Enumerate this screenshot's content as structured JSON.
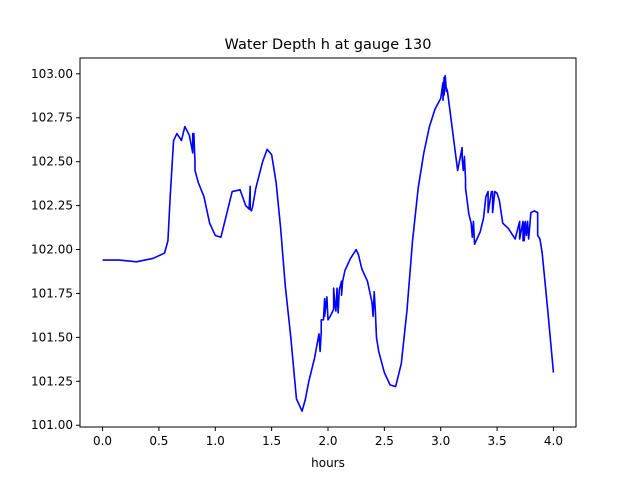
{
  "chart_data": {
    "type": "line",
    "title": "Water Depth h at gauge 130",
    "xlabel": "hours",
    "ylabel": "",
    "xlim": [
      -0.2,
      4.2
    ],
    "ylim": [
      100.99,
      103.09
    ],
    "x_ticks": [
      0.0,
      0.5,
      1.0,
      1.5,
      2.0,
      2.5,
      3.0,
      3.5,
      4.0
    ],
    "x_tick_labels": [
      "0.0",
      "0.5",
      "1.0",
      "1.5",
      "2.0",
      "2.5",
      "3.0",
      "3.5",
      "4.0"
    ],
    "y_ticks": [
      101.0,
      101.25,
      101.5,
      101.75,
      102.0,
      102.25,
      102.5,
      102.75,
      103.0
    ],
    "y_tick_labels": [
      "101.00",
      "101.25",
      "101.50",
      "101.75",
      "102.00",
      "102.25",
      "102.50",
      "102.75",
      "103.00"
    ],
    "grid": false,
    "legend": "none",
    "series": [
      {
        "color": "#0000ff",
        "x": [
          0.0,
          0.15,
          0.3,
          0.45,
          0.55,
          0.58,
          0.6,
          0.63,
          0.66,
          0.7,
          0.73,
          0.77,
          0.8,
          0.8,
          0.81,
          0.81,
          0.82,
          0.82,
          0.85,
          0.9,
          0.95,
          1.0,
          1.05,
          1.1,
          1.15,
          1.22,
          1.27,
          1.3,
          1.31,
          1.31,
          1.32,
          1.33,
          1.36,
          1.42,
          1.46,
          1.5,
          1.54,
          1.58,
          1.62,
          1.67,
          1.72,
          1.77,
          1.8,
          1.83,
          1.88,
          1.92,
          1.93,
          1.94,
          1.94,
          1.95,
          1.96,
          1.97,
          1.97,
          1.99,
          2.0,
          2.02,
          2.05,
          2.05,
          2.06,
          2.07,
          2.08,
          2.09,
          2.1,
          2.12,
          2.12,
          2.13,
          2.15,
          2.2,
          2.25,
          2.27,
          2.3,
          2.35,
          2.39,
          2.4,
          2.41,
          2.42,
          2.43,
          2.45,
          2.5,
          2.55,
          2.6,
          2.65,
          2.7,
          2.75,
          2.8,
          2.85,
          2.9,
          2.95,
          3.0,
          3.02,
          3.02,
          3.03,
          3.03,
          3.04,
          3.05,
          3.05,
          3.06,
          3.1,
          3.15,
          3.19,
          3.19,
          3.2,
          3.21,
          3.22,
          3.22,
          3.23,
          3.25,
          3.27,
          3.28,
          3.29,
          3.3,
          3.35,
          3.38,
          3.4,
          3.42,
          3.42,
          3.45,
          3.46,
          3.46,
          3.48,
          3.5,
          3.52,
          3.55,
          3.6,
          3.66,
          3.7,
          3.7,
          3.73,
          3.73,
          3.74,
          3.74,
          3.75,
          3.76,
          3.77,
          3.78,
          3.8,
          3.83,
          3.86,
          3.86,
          3.88,
          3.9,
          3.95,
          4.0
        ],
        "y": [
          101.94,
          101.94,
          101.93,
          101.95,
          101.98,
          102.05,
          102.3,
          102.62,
          102.66,
          102.62,
          102.7,
          102.65,
          102.55,
          102.66,
          102.6,
          102.66,
          102.5,
          102.45,
          102.38,
          102.3,
          102.15,
          102.08,
          102.07,
          102.2,
          102.33,
          102.34,
          102.25,
          102.23,
          102.36,
          102.23,
          102.22,
          102.24,
          102.35,
          102.5,
          102.57,
          102.54,
          102.38,
          102.12,
          101.8,
          101.5,
          101.15,
          101.08,
          101.15,
          101.25,
          101.38,
          101.52,
          101.42,
          101.53,
          101.6,
          101.6,
          101.6,
          101.72,
          101.62,
          101.73,
          101.6,
          101.62,
          101.66,
          101.78,
          101.7,
          101.65,
          101.78,
          101.64,
          101.77,
          101.82,
          101.74,
          101.82,
          101.88,
          101.95,
          102.0,
          101.97,
          101.89,
          101.82,
          101.7,
          101.62,
          101.76,
          101.65,
          101.5,
          101.42,
          101.3,
          101.23,
          101.22,
          101.35,
          101.65,
          102.05,
          102.35,
          102.55,
          102.7,
          102.8,
          102.86,
          102.95,
          102.85,
          102.98,
          102.88,
          102.99,
          102.9,
          102.92,
          102.9,
          102.7,
          102.45,
          102.58,
          102.52,
          102.45,
          102.53,
          102.4,
          102.35,
          102.3,
          102.2,
          102.15,
          102.07,
          102.16,
          102.03,
          102.1,
          102.18,
          102.3,
          102.33,
          102.21,
          102.33,
          102.33,
          102.21,
          102.33,
          102.32,
          102.28,
          102.15,
          102.12,
          102.06,
          102.16,
          102.06,
          102.16,
          102.05,
          102.15,
          102.05,
          102.16,
          102.08,
          102.16,
          102.06,
          102.21,
          102.22,
          102.21,
          102.08,
          102.06,
          101.98,
          101.65,
          101.3
        ]
      }
    ]
  }
}
